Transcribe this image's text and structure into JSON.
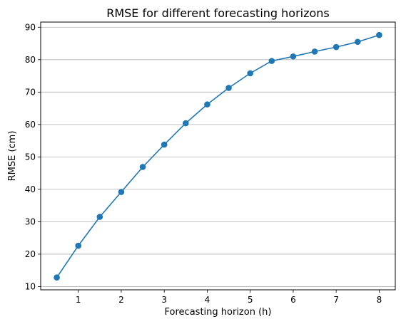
{
  "chart_data": {
    "type": "line",
    "title": "RMSE for different forecasting horizons",
    "xlabel": "Forecasting horizon (h)",
    "ylabel": "RMSE (cm)",
    "xlim": [
      0.125,
      8.375
    ],
    "ylim": [
      9.0,
      91.6
    ],
    "xticks": [
      1,
      2,
      3,
      4,
      5,
      6,
      7,
      8
    ],
    "yticks": [
      10,
      20,
      30,
      40,
      50,
      60,
      70,
      80,
      90
    ],
    "grid": "y-major",
    "color": "#1f77b4",
    "series": [
      {
        "x": [
          0.5,
          1.0,
          1.5,
          2.0,
          2.5,
          3.0,
          3.5,
          4.0,
          4.5,
          5.0,
          5.5,
          6.0,
          6.5,
          7.0,
          7.5,
          8.0
        ],
        "y": [
          12.8,
          22.6,
          31.5,
          39.2,
          46.9,
          53.8,
          60.4,
          66.2,
          71.3,
          75.8,
          79.6,
          81.0,
          82.5,
          83.9,
          85.5,
          87.6
        ]
      }
    ]
  }
}
